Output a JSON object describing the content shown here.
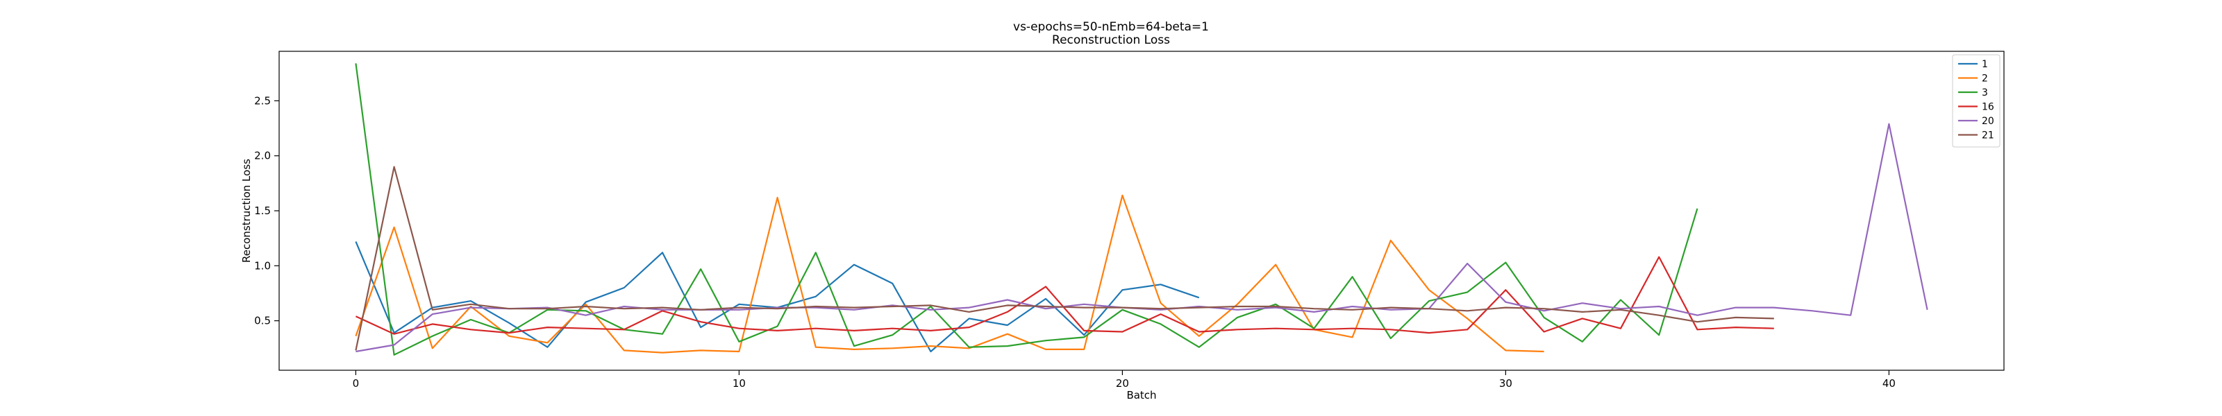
{
  "chart_data": {
    "type": "line",
    "title": "vs-epochs=50-nEmb=64-beta=1",
    "subtitle": "Reconstruction Loss",
    "xlabel": "Batch",
    "ylabel": "Reconstruction Loss",
    "xlim": [
      -2,
      43
    ],
    "ylim": [
      0.05,
      2.95
    ],
    "xticks": [
      0,
      10,
      20,
      30,
      40
    ],
    "yticks": [
      0.5,
      1.0,
      1.5,
      2.0,
      2.5
    ],
    "xtick_labels": [
      "0",
      "10",
      "20",
      "30",
      "40"
    ],
    "ytick_labels": [
      "0.5",
      "1.0",
      "1.5",
      "2.0",
      "2.5"
    ],
    "grid": false,
    "legend_position": "top-right",
    "series": [
      {
        "name": "1",
        "color": "#1f77b4",
        "x": [
          0,
          1,
          2,
          3,
          4,
          5,
          6,
          7,
          8,
          9,
          10,
          11,
          12,
          13,
          14,
          15,
          16,
          17,
          18,
          19,
          20,
          21,
          22
        ],
        "values": [
          1.22,
          0.39,
          0.62,
          0.68,
          0.48,
          0.26,
          0.67,
          0.8,
          1.12,
          0.44,
          0.65,
          0.62,
          0.72,
          1.01,
          0.84,
          0.22,
          0.52,
          0.46,
          0.7,
          0.37,
          0.78,
          0.83,
          0.71
        ]
      },
      {
        "name": "2",
        "color": "#ff7f0e",
        "x": [
          0,
          1,
          2,
          3,
          4,
          5,
          6,
          7,
          8,
          9,
          10,
          11,
          12,
          13,
          14,
          15,
          16,
          17,
          18,
          19,
          20,
          21,
          22,
          23,
          24,
          25,
          26,
          27,
          28,
          29,
          30,
          31
        ],
        "values": [
          0.36,
          1.35,
          0.25,
          0.63,
          0.36,
          0.3,
          0.65,
          0.23,
          0.21,
          0.23,
          0.22,
          1.62,
          0.26,
          0.24,
          0.25,
          0.27,
          0.25,
          0.38,
          0.24,
          0.24,
          1.64,
          0.66,
          0.36,
          0.65,
          1.01,
          0.42,
          0.35,
          1.23,
          0.78,
          0.52,
          0.23,
          0.22
        ]
      },
      {
        "name": "3",
        "color": "#2ca02c",
        "x": [
          0,
          1,
          2,
          3,
          4,
          5,
          6,
          7,
          8,
          9,
          10,
          11,
          12,
          13,
          14,
          15,
          16,
          17,
          18,
          19,
          20,
          21,
          22,
          23,
          24,
          25,
          26,
          27,
          28,
          29,
          30,
          31,
          32,
          33,
          34,
          35
        ],
        "values": [
          2.84,
          0.19,
          0.36,
          0.51,
          0.39,
          0.6,
          0.59,
          0.42,
          0.38,
          0.97,
          0.31,
          0.45,
          1.12,
          0.27,
          0.37,
          0.63,
          0.26,
          0.27,
          0.32,
          0.35,
          0.6,
          0.47,
          0.26,
          0.53,
          0.65,
          0.43,
          0.9,
          0.34,
          0.68,
          0.76,
          1.03,
          0.53,
          0.31,
          0.69,
          0.37,
          1.52
        ]
      },
      {
        "name": "16",
        "color": "#d62728",
        "x": [
          0,
          1,
          2,
          3,
          4,
          5,
          6,
          7,
          8,
          9,
          10,
          11,
          12,
          13,
          14,
          15,
          16,
          17,
          18,
          19,
          20,
          21,
          22,
          23,
          24,
          25,
          26,
          27,
          28,
          29,
          30,
          31,
          32,
          33,
          34,
          35,
          36,
          37
        ],
        "values": [
          0.54,
          0.38,
          0.47,
          0.42,
          0.39,
          0.44,
          0.43,
          0.42,
          0.59,
          0.49,
          0.43,
          0.41,
          0.43,
          0.41,
          0.43,
          0.41,
          0.44,
          0.58,
          0.81,
          0.41,
          0.4,
          0.56,
          0.4,
          0.42,
          0.43,
          0.42,
          0.43,
          0.42,
          0.39,
          0.42,
          0.78,
          0.4,
          0.52,
          0.43,
          1.08,
          0.42,
          0.44,
          0.43
        ]
      },
      {
        "name": "20",
        "color": "#9467bd",
        "x": [
          0,
          1,
          2,
          3,
          4,
          5,
          6,
          7,
          8,
          9,
          10,
          11,
          12,
          13,
          14,
          15,
          16,
          17,
          18,
          19,
          20,
          21,
          22,
          23,
          24,
          25,
          26,
          27,
          28,
          29,
          30,
          31,
          32,
          33,
          34,
          35,
          36,
          37,
          38,
          39,
          40,
          41
        ],
        "values": [
          0.22,
          0.28,
          0.56,
          0.62,
          0.61,
          0.62,
          0.55,
          0.63,
          0.6,
          0.6,
          0.6,
          0.62,
          0.62,
          0.6,
          0.64,
          0.6,
          0.62,
          0.69,
          0.61,
          0.65,
          0.62,
          0.6,
          0.63,
          0.6,
          0.62,
          0.58,
          0.63,
          0.6,
          0.61,
          1.02,
          0.67,
          0.59,
          0.66,
          0.61,
          0.63,
          0.55,
          0.62,
          0.62,
          0.59,
          0.55,
          2.29,
          0.6
        ]
      },
      {
        "name": "21",
        "color": "#8c564b",
        "x": [
          0,
          1,
          2,
          3,
          4,
          5,
          6,
          7,
          8,
          9,
          10,
          11,
          12,
          13,
          14,
          15,
          16,
          17,
          18,
          19,
          20,
          21,
          22,
          23,
          24,
          25,
          26,
          27,
          28,
          29,
          30,
          31,
          32,
          33,
          34,
          35,
          36,
          37
        ],
        "values": [
          0.23,
          1.9,
          0.6,
          0.65,
          0.61,
          0.61,
          0.63,
          0.61,
          0.62,
          0.6,
          0.62,
          0.61,
          0.63,
          0.62,
          0.63,
          0.64,
          0.58,
          0.64,
          0.63,
          0.62,
          0.62,
          0.61,
          0.62,
          0.63,
          0.63,
          0.61,
          0.6,
          0.62,
          0.61,
          0.59,
          0.62,
          0.61,
          0.58,
          0.6,
          0.55,
          0.49,
          0.53,
          0.52
        ]
      }
    ]
  }
}
